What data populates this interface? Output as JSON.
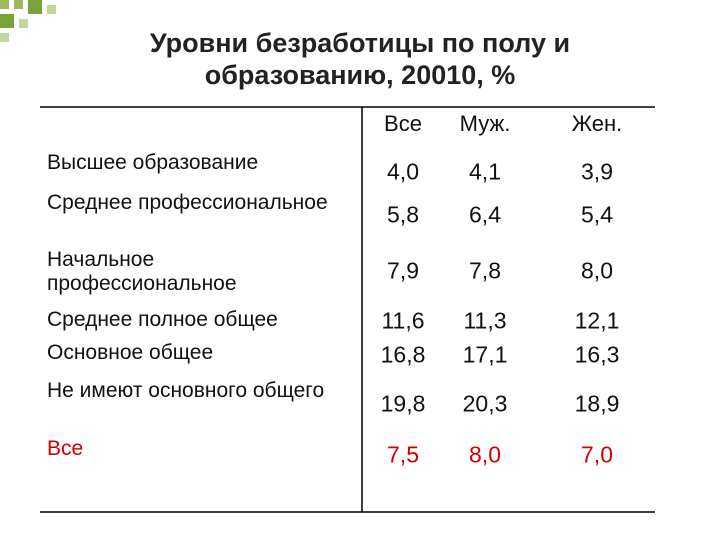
{
  "title": [
    "Уровни безработицы по полу и",
    "образованию, 20010, %"
  ],
  "table": {
    "columns": [
      "Все",
      "Муж.",
      "Жен."
    ],
    "rows": [
      {
        "label": "Высшее образование",
        "values": [
          "4,0",
          "4,1",
          "3,9"
        ]
      },
      {
        "label": "Среднее профессиональное",
        "values": [
          "5,8",
          "6,4",
          "5,4"
        ]
      },
      {
        "label": "Начальное профессиональное",
        "values": [
          "7,9",
          "7,8",
          "8,0"
        ]
      },
      {
        "label": "Среднее полное общее",
        "values": [
          "11,6",
          "11,3",
          "12,1"
        ]
      },
      {
        "label": "Основное общее",
        "values": [
          "16,8",
          "17,1",
          "16,3"
        ]
      },
      {
        "label": "Не имеют основного общего",
        "values": [
          "19,8",
          "20,3",
          "18,9"
        ]
      },
      {
        "label": "Все",
        "values": [
          "7,5",
          "8,0",
          "7,0"
        ]
      }
    ]
  }
}
